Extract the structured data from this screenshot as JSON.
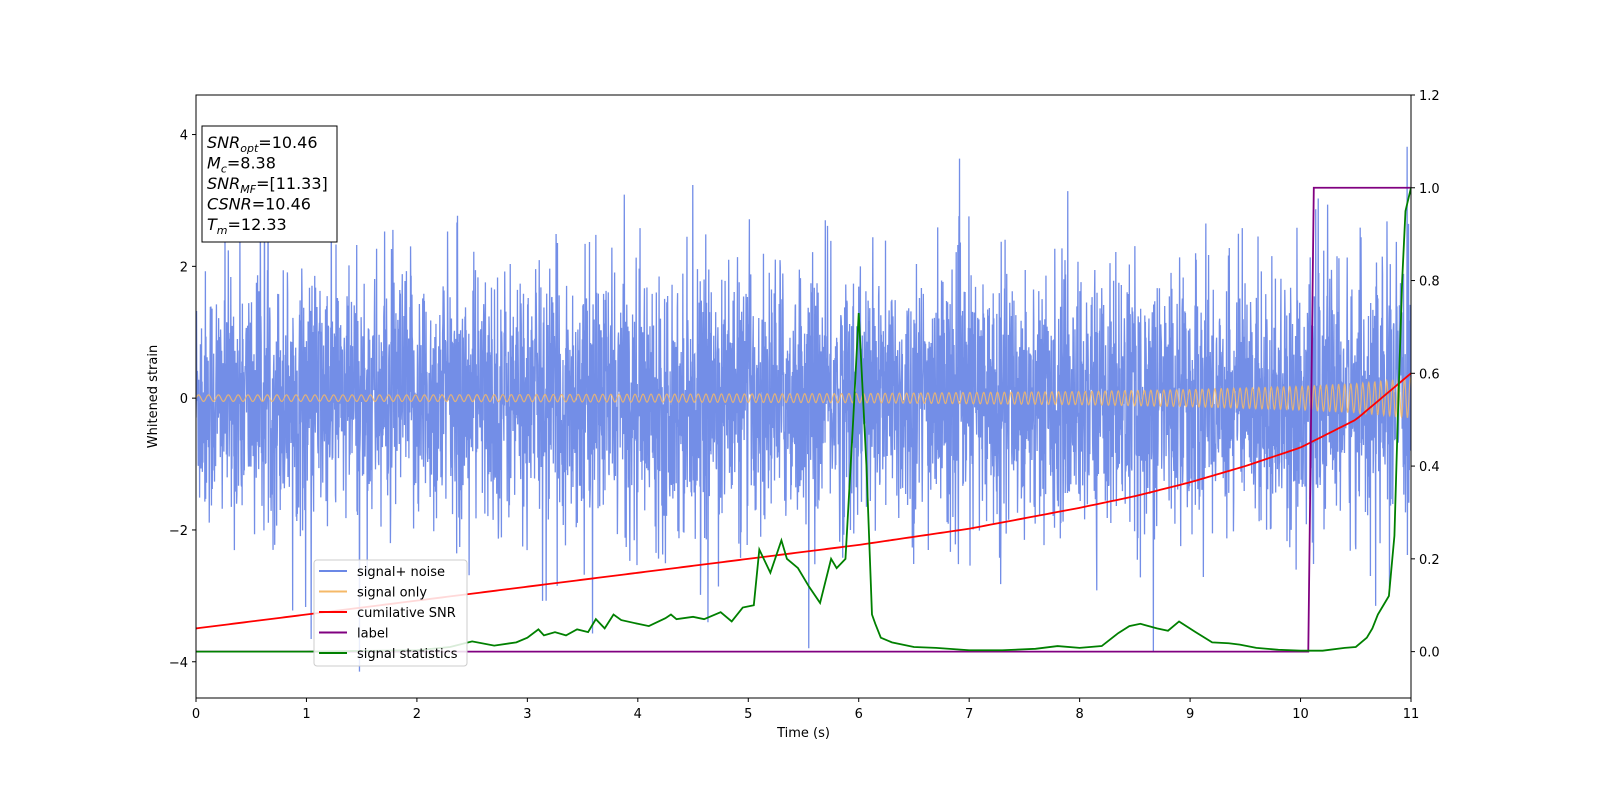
{
  "chart_data": {
    "type": "line",
    "xlabel": "Time (s)",
    "ylabel": "Whitened strain",
    "xlim": [
      0,
      11
    ],
    "ylim_left": [
      -4.55,
      4.6
    ],
    "ylim_right": [
      -0.1,
      1.2
    ],
    "x_ticks": [
      0,
      1,
      2,
      3,
      4,
      5,
      6,
      7,
      8,
      9,
      10,
      11
    ],
    "y_ticks_left": [
      -4,
      -2,
      0,
      2,
      4
    ],
    "y_ticks_right": [
      0.0,
      0.2,
      0.4,
      0.6,
      0.8,
      1.0,
      1.2
    ],
    "y_tick_labels_right": [
      "0.0",
      "0.2",
      "0.4",
      "0.6",
      "0.8",
      "1.0",
      "1.2"
    ],
    "legend_position": "lower-left",
    "annotation": [
      {
        "base": "SNR",
        "sub": "opt",
        "text": "=10.46"
      },
      {
        "base": "M",
        "sub": "c",
        "text": "=8.38"
      },
      {
        "base": "SNR",
        "sub": "MF",
        "text": "=[11.33]"
      },
      {
        "base": "CSNR",
        "sub": "",
        "text": "=10.46"
      },
      {
        "base": "T",
        "sub": "m",
        "text": "=12.33"
      }
    ],
    "series": [
      {
        "name": "signal+ noise",
        "axis": "left",
        "color": "#6b88e6",
        "description_values": {
          "typical_abs_peak": 3.0,
          "max": 4.15,
          "min": -4.15
        }
      },
      {
        "name": "signal only",
        "axis": "left",
        "color": "#f5b968",
        "x": [
          0,
          2,
          4,
          6,
          8,
          9,
          10,
          10.5,
          11
        ],
        "amplitude": [
          0.05,
          0.05,
          0.06,
          0.07,
          0.1,
          0.13,
          0.18,
          0.22,
          0.3
        ]
      },
      {
        "name": "cumilative SNR",
        "axis": "right",
        "color": "#ff0000",
        "x": [
          0,
          1,
          2,
          3,
          4,
          5,
          6,
          7,
          8,
          8.5,
          9,
          9.5,
          10,
          10.5,
          11
        ],
        "values": [
          0.05,
          0.08,
          0.11,
          0.14,
          0.17,
          0.2,
          0.23,
          0.265,
          0.31,
          0.335,
          0.365,
          0.4,
          0.44,
          0.5,
          0.6
        ]
      },
      {
        "name": "label",
        "axis": "right",
        "color": "#800080",
        "x": [
          0,
          10.07,
          10.12,
          11
        ],
        "values": [
          0,
          0,
          1,
          1
        ]
      },
      {
        "name": "signal statistics",
        "axis": "right",
        "color": "#008000",
        "x": [
          0,
          1,
          2,
          2.3,
          2.5,
          2.7,
          2.9,
          3.0,
          3.1,
          3.15,
          3.25,
          3.35,
          3.45,
          3.55,
          3.62,
          3.7,
          3.78,
          3.85,
          4.0,
          4.1,
          4.25,
          4.3,
          4.35,
          4.5,
          4.6,
          4.75,
          4.85,
          4.95,
          5.05,
          5.1,
          5.2,
          5.3,
          5.35,
          5.4,
          5.45,
          5.55,
          5.65,
          5.75,
          5.8,
          5.88,
          5.95,
          6.0,
          6.07,
          6.12,
          6.15,
          6.2,
          6.3,
          6.5,
          6.7,
          7.0,
          7.3,
          7.6,
          7.8,
          8.0,
          8.2,
          8.35,
          8.45,
          8.55,
          8.7,
          8.8,
          8.9,
          9.05,
          9.2,
          9.35,
          9.45,
          9.6,
          9.8,
          10.0,
          10.2,
          10.4,
          10.5,
          10.6,
          10.65,
          10.7,
          10.75,
          10.8,
          10.85,
          10.88,
          10.92,
          10.95,
          11
        ],
        "values": [
          0,
          0,
          0.003,
          0.01,
          0.022,
          0.013,
          0.02,
          0.03,
          0.048,
          0.035,
          0.042,
          0.035,
          0.048,
          0.042,
          0.07,
          0.05,
          0.08,
          0.068,
          0.06,
          0.055,
          0.072,
          0.08,
          0.07,
          0.075,
          0.07,
          0.085,
          0.065,
          0.095,
          0.1,
          0.22,
          0.17,
          0.24,
          0.2,
          0.19,
          0.18,
          0.14,
          0.105,
          0.2,
          0.18,
          0.2,
          0.5,
          0.73,
          0.4,
          0.08,
          0.06,
          0.03,
          0.02,
          0.01,
          0.008,
          0.003,
          0.003,
          0.006,
          0.012,
          0.008,
          0.012,
          0.04,
          0.055,
          0.06,
          0.05,
          0.045,
          0.065,
          0.042,
          0.02,
          0.018,
          0.015,
          0.008,
          0.004,
          0.002,
          0.002,
          0.008,
          0.01,
          0.03,
          0.05,
          0.08,
          0.1,
          0.12,
          0.25,
          0.5,
          0.8,
          0.95,
          1.0
        ]
      }
    ]
  }
}
